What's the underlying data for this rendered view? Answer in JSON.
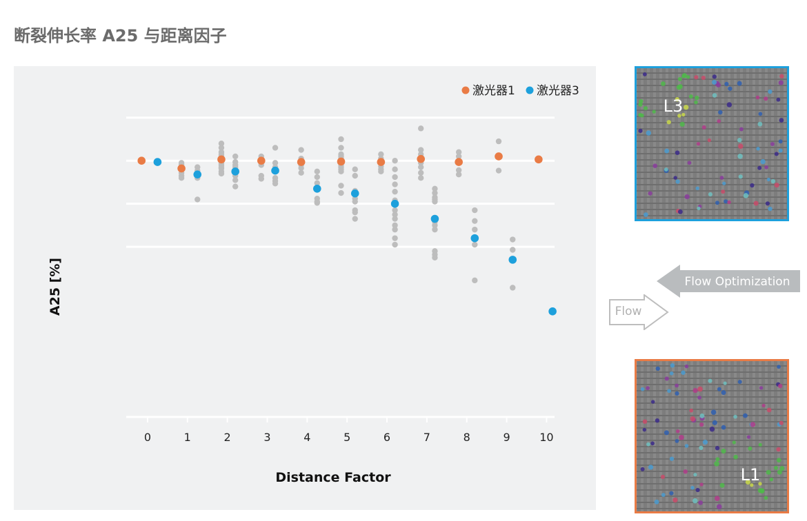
{
  "title": "断裂伸长率 A25 与距离因子",
  "colors": {
    "laser1": "#e97b45",
    "laser3": "#1da0dc",
    "samples": "#bdbdbd",
    "panel": "#f0f1f2",
    "grid": "#ffffff",
    "photo1_frame": "#e97b45",
    "photo3_frame": "#1da0dc",
    "flow_opt_arrow": "#b9bcbe"
  },
  "chart_data": {
    "type": "scatter",
    "title": "",
    "xlabel": "Distance Factor",
    "ylabel": "A25 [%]",
    "xlim": [
      -0.5,
      10.2
    ],
    "ylim": [
      -4,
      3.3
    ],
    "x_ticks": [
      0,
      1,
      2,
      3,
      4,
      5,
      6,
      7,
      8,
      9,
      10
    ],
    "gridlines_y": [
      0,
      1,
      2,
      3
    ],
    "grid": "horizontal",
    "legend": {
      "placement": "top-right",
      "entries": [
        "激光器1",
        "激光器3"
      ]
    },
    "series": [
      {
        "name": "激光器1",
        "color": "#e97b45",
        "points": [
          [
            -0.15,
            2.0
          ],
          [
            0.85,
            1.82
          ],
          [
            1.85,
            2.03
          ],
          [
            2.85,
            2.0
          ],
          [
            3.85,
            1.97
          ],
          [
            4.85,
            1.98
          ],
          [
            5.85,
            1.97
          ],
          [
            6.85,
            2.04
          ],
          [
            7.8,
            1.97
          ],
          [
            8.8,
            2.1
          ],
          [
            9.8,
            2.03
          ]
        ]
      },
      {
        "name": "激光器3",
        "color": "#1da0dc",
        "points": [
          [
            0.25,
            1.97
          ],
          [
            1.25,
            1.68
          ],
          [
            2.2,
            1.75
          ],
          [
            3.2,
            1.77
          ],
          [
            4.25,
            1.35
          ],
          [
            5.2,
            1.24
          ],
          [
            6.2,
            1.0
          ],
          [
            7.2,
            0.65
          ],
          [
            8.2,
            0.2
          ],
          [
            9.15,
            -0.3
          ],
          [
            10.15,
            -1.5
          ]
        ]
      },
      {
        "name": "",
        "color": "#bdbdbd",
        "points": [
          [
            0.85,
            1.95
          ],
          [
            0.85,
            1.9
          ],
          [
            0.85,
            1.72
          ],
          [
            0.85,
            1.65
          ],
          [
            0.85,
            1.6
          ],
          [
            1.25,
            1.85
          ],
          [
            1.25,
            1.77
          ],
          [
            1.25,
            1.6
          ],
          [
            1.25,
            1.1
          ],
          [
            1.85,
            2.4
          ],
          [
            1.85,
            2.3
          ],
          [
            1.85,
            2.2
          ],
          [
            1.85,
            2.15
          ],
          [
            1.85,
            2.1
          ],
          [
            1.85,
            1.95
          ],
          [
            1.85,
            1.9
          ],
          [
            1.85,
            1.85
          ],
          [
            1.85,
            1.82
          ],
          [
            1.85,
            1.75
          ],
          [
            1.85,
            1.7
          ],
          [
            2.2,
            2.1
          ],
          [
            2.2,
            1.97
          ],
          [
            2.2,
            1.9
          ],
          [
            2.2,
            1.85
          ],
          [
            2.2,
            1.7
          ],
          [
            2.2,
            1.65
          ],
          [
            2.2,
            1.55
          ],
          [
            2.2,
            1.4
          ],
          [
            2.85,
            2.1
          ],
          [
            2.85,
            2.05
          ],
          [
            2.85,
            1.95
          ],
          [
            2.85,
            1.9
          ],
          [
            2.85,
            1.65
          ],
          [
            2.85,
            1.58
          ],
          [
            3.2,
            2.3
          ],
          [
            3.2,
            1.95
          ],
          [
            3.2,
            1.85
          ],
          [
            3.2,
            1.6
          ],
          [
            3.2,
            1.53
          ],
          [
            3.2,
            1.47
          ],
          [
            3.85,
            2.25
          ],
          [
            3.85,
            2.05
          ],
          [
            3.85,
            1.9
          ],
          [
            3.85,
            1.83
          ],
          [
            3.85,
            1.72
          ],
          [
            4.25,
            1.75
          ],
          [
            4.25,
            1.62
          ],
          [
            4.25,
            1.48
          ],
          [
            4.25,
            1.12
          ],
          [
            4.25,
            1.05
          ],
          [
            4.25,
            1.02
          ],
          [
            4.85,
            2.5
          ],
          [
            4.85,
            2.3
          ],
          [
            4.85,
            2.15
          ],
          [
            4.85,
            2.1
          ],
          [
            4.85,
            2.05
          ],
          [
            4.85,
            1.95
          ],
          [
            4.85,
            1.9
          ],
          [
            4.85,
            1.85
          ],
          [
            4.85,
            1.8
          ],
          [
            4.85,
            1.75
          ],
          [
            4.85,
            1.42
          ],
          [
            4.85,
            1.25
          ],
          [
            5.2,
            1.8
          ],
          [
            5.2,
            1.65
          ],
          [
            5.2,
            1.3
          ],
          [
            5.2,
            1.12
          ],
          [
            5.2,
            1.05
          ],
          [
            5.2,
            0.85
          ],
          [
            5.2,
            0.8
          ],
          [
            5.2,
            0.65
          ],
          [
            5.85,
            2.15
          ],
          [
            5.85,
            2.05
          ],
          [
            5.85,
            1.95
          ],
          [
            5.85,
            1.87
          ],
          [
            5.85,
            1.8
          ],
          [
            5.85,
            1.75
          ],
          [
            6.2,
            2.0
          ],
          [
            6.2,
            1.8
          ],
          [
            6.2,
            1.62
          ],
          [
            6.2,
            1.45
          ],
          [
            6.2,
            1.28
          ],
          [
            6.2,
            1.08
          ],
          [
            6.2,
            0.85
          ],
          [
            6.2,
            0.75
          ],
          [
            6.2,
            0.65
          ],
          [
            6.2,
            0.5
          ],
          [
            6.2,
            0.4
          ],
          [
            6.2,
            0.2
          ],
          [
            6.2,
            0.05
          ],
          [
            6.85,
            2.75
          ],
          [
            6.85,
            2.25
          ],
          [
            6.85,
            2.15
          ],
          [
            6.85,
            2.05
          ],
          [
            6.85,
            1.95
          ],
          [
            6.85,
            1.85
          ],
          [
            6.85,
            1.72
          ],
          [
            6.85,
            1.6
          ],
          [
            7.2,
            1.35
          ],
          [
            7.2,
            1.25
          ],
          [
            7.2,
            1.15
          ],
          [
            7.2,
            1.1
          ],
          [
            7.2,
            1.05
          ],
          [
            7.2,
            0.58
          ],
          [
            7.2,
            0.5
          ],
          [
            7.2,
            0.4
          ],
          [
            7.2,
            -0.1
          ],
          [
            7.2,
            -0.18
          ],
          [
            7.2,
            -0.25
          ],
          [
            7.8,
            2.2
          ],
          [
            7.8,
            2.1
          ],
          [
            7.8,
            1.78
          ],
          [
            7.8,
            1.68
          ],
          [
            8.2,
            0.85
          ],
          [
            8.2,
            0.6
          ],
          [
            8.2,
            0.4
          ],
          [
            8.2,
            0.05
          ],
          [
            8.2,
            -0.78
          ],
          [
            8.8,
            2.45
          ],
          [
            8.8,
            1.77
          ],
          [
            9.15,
            0.17
          ],
          [
            9.15,
            -0.07
          ],
          [
            9.15,
            -0.95
          ]
        ]
      }
    ]
  },
  "side": {
    "photo_top_label": "L3",
    "photo_bottom_label": "L1",
    "flow_optimization_label": "Flow Optimization",
    "flow_label": "Flow"
  }
}
